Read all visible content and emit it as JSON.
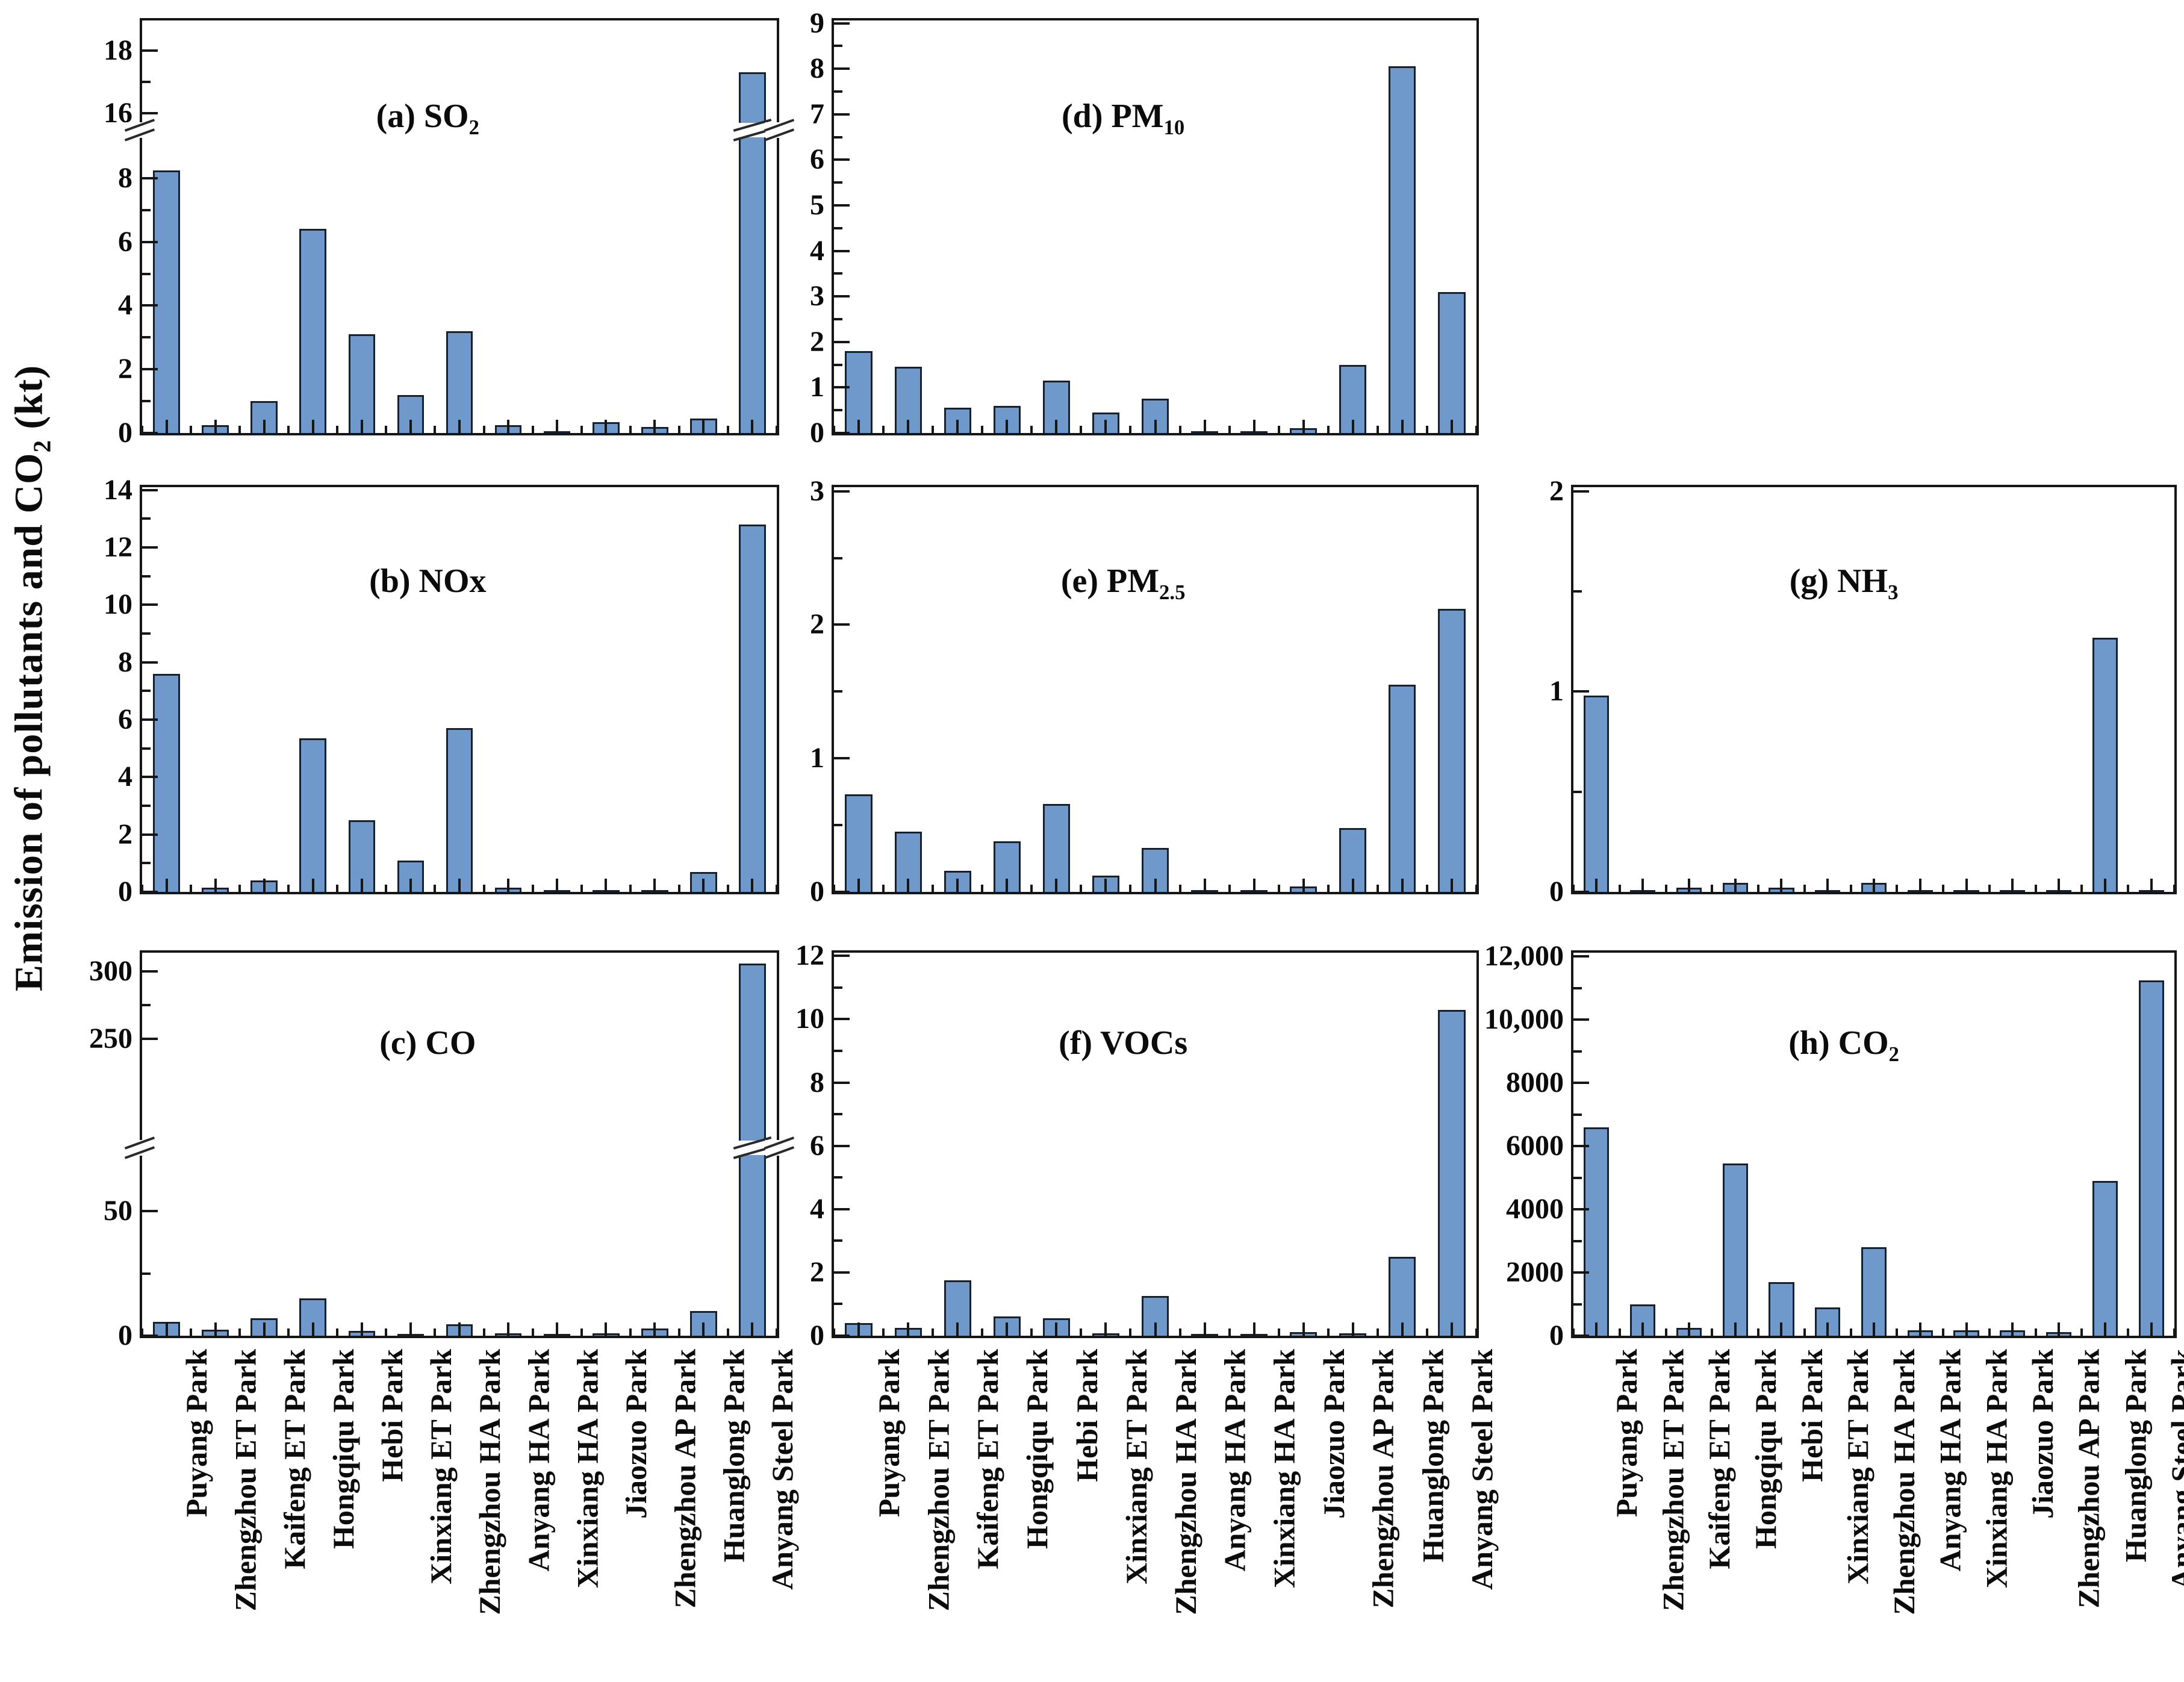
{
  "figure": {
    "y_axis_label": {
      "pre": "Emission of pollutants and CO",
      "sub": "2",
      "post": " (kt)"
    },
    "bar_color": "#6f98cb",
    "bar_edge_color": "#17202e",
    "axis_color": "#161616",
    "text_color": "#0b0b0b"
  },
  "chart_data": {
    "type": "bar",
    "legend": "none",
    "grid": "off",
    "categories": [
      "Puyang Park",
      "Zhengzhou ET Park",
      "Kaifeng ET Park",
      "Hongqiqu Park",
      "Hebi Park",
      "Xinxiang ET Park",
      "Zhengzhou HA Park",
      "Anyang HA Park",
      "Xinxiang HA Park",
      "Jiaozuo Park",
      "Zhengzhou AP Park",
      "Huanglong Park",
      "Anyang Steel Park"
    ],
    "panels": [
      {
        "key": "a",
        "title": "(a)  SO",
        "title_sub": "2",
        "grid": [
          0,
          0
        ],
        "values": [
          8.25,
          0.25,
          1.0,
          6.4,
          3.1,
          1.2,
          3.2,
          0.25,
          0.05,
          0.35,
          0.18,
          0.45,
          17.3
        ],
        "axis": {
          "segments": [
            {
              "v0": 0,
              "v1": 9.0,
              "f0": 0,
              "f1": 0.695
            },
            {
              "v0": 16,
              "v1": 18.95,
              "f0": 0.775,
              "f1": 1.0
            }
          ],
          "majors": [
            {
              "v": 0,
              "label": "0"
            },
            {
              "v": 2,
              "label": "2"
            },
            {
              "v": 4,
              "label": "4"
            },
            {
              "v": 6,
              "label": "6"
            },
            {
              "v": 8,
              "label": "8"
            },
            {
              "v": 16,
              "label": "16"
            },
            {
              "v": 18,
              "label": "18"
            }
          ],
          "minors": [
            1,
            3,
            5,
            7,
            17
          ],
          "break_frac": 0.735
        }
      },
      {
        "key": "d",
        "title": "(d) PM",
        "title_sub": "10",
        "grid": [
          0,
          1
        ],
        "values": [
          1.8,
          1.45,
          0.55,
          0.6,
          1.15,
          0.45,
          0.75,
          0.02,
          0.02,
          0.1,
          1.5,
          8.05,
          3.1
        ],
        "axis": {
          "segments": [
            {
              "v0": 0,
              "v1": 9.06,
              "f0": 0,
              "f1": 1.0
            }
          ],
          "majors": [
            {
              "v": 0,
              "label": "0"
            },
            {
              "v": 1,
              "label": "1"
            },
            {
              "v": 2,
              "label": "2"
            },
            {
              "v": 3,
              "label": "3"
            },
            {
              "v": 4,
              "label": "4"
            },
            {
              "v": 5,
              "label": "5"
            },
            {
              "v": 6,
              "label": "6"
            },
            {
              "v": 7,
              "label": "7"
            },
            {
              "v": 8,
              "label": "8"
            },
            {
              "v": 9,
              "label": "9"
            }
          ],
          "minors": [
            0.5,
            1.5,
            2.5,
            3.5,
            4.5,
            5.5,
            6.5,
            7.5,
            8.5
          ],
          "break_frac": null
        }
      },
      {
        "key": "b",
        "title": "(b) NOx",
        "title_sub": "",
        "grid": [
          1,
          0
        ],
        "values": [
          7.6,
          0.15,
          0.4,
          5.35,
          2.5,
          1.1,
          5.7,
          0.15,
          0.03,
          0.07,
          0.06,
          0.7,
          12.8
        ],
        "axis": {
          "segments": [
            {
              "v0": 0,
              "v1": 14.1,
              "f0": 0,
              "f1": 1.0
            }
          ],
          "majors": [
            {
              "v": 0,
              "label": "0"
            },
            {
              "v": 2,
              "label": "2"
            },
            {
              "v": 4,
              "label": "4"
            },
            {
              "v": 6,
              "label": "6"
            },
            {
              "v": 8,
              "label": "8"
            },
            {
              "v": 10,
              "label": "10"
            },
            {
              "v": 12,
              "label": "12"
            },
            {
              "v": 14,
              "label": "14"
            }
          ],
          "minors": [
            1,
            3,
            5,
            7,
            9,
            11,
            13
          ],
          "break_frac": null
        }
      },
      {
        "key": "e",
        "title": "(e) PM",
        "title_sub": "2.5",
        "grid": [
          1,
          1
        ],
        "values": [
          0.73,
          0.45,
          0.16,
          0.38,
          0.66,
          0.12,
          0.33,
          0.01,
          0.01,
          0.04,
          0.48,
          1.55,
          2.12
        ],
        "axis": {
          "segments": [
            {
              "v0": 0,
              "v1": 3.03,
              "f0": 0,
              "f1": 1.0
            }
          ],
          "majors": [
            {
              "v": 0,
              "label": "0"
            },
            {
              "v": 1,
              "label": "1"
            },
            {
              "v": 2,
              "label": "2"
            },
            {
              "v": 3,
              "label": "3"
            }
          ],
          "minors": [
            0.5,
            1.5,
            2.5
          ],
          "break_frac": null
        }
      },
      {
        "key": "g",
        "title": "(g) NH",
        "title_sub": "3",
        "grid": [
          1,
          2
        ],
        "values": [
          0.98,
          0.005,
          0.02,
          0.045,
          0.02,
          0.005,
          0.045,
          0.004,
          0.004,
          0.006,
          0.004,
          1.27,
          0.01
        ],
        "axis": {
          "segments": [
            {
              "v0": 0,
              "v1": 2.02,
              "f0": 0,
              "f1": 1.0
            }
          ],
          "majors": [
            {
              "v": 0,
              "label": "0"
            },
            {
              "v": 1,
              "label": "1"
            },
            {
              "v": 2,
              "label": "2"
            }
          ],
          "minors": [
            0.5,
            1.5
          ],
          "break_frac": null
        }
      },
      {
        "key": "c",
        "title": "(c) CO",
        "title_sub": "",
        "grid": [
          2,
          0
        ],
        "values": [
          5.5,
          2.5,
          7.0,
          15.0,
          2.0,
          0.5,
          4.5,
          1.0,
          0.2,
          1.0,
          3.0,
          10.0,
          306
        ],
        "axis": {
          "segments": [
            {
              "v0": 0,
              "v1": 70,
              "f0": 0,
              "f1": 0.455
            },
            {
              "v0": 245,
              "v1": 314,
              "f0": 0.758,
              "f1": 1.0
            }
          ],
          "majors": [
            {
              "v": 0,
              "label": "0"
            },
            {
              "v": 50,
              "label": "50"
            },
            {
              "v": 250,
              "label": "250"
            },
            {
              "v": 300,
              "label": "300"
            }
          ],
          "minors": [
            25,
            275
          ],
          "break_frac": 0.49
        }
      },
      {
        "key": "f",
        "title": "(f) VOCs",
        "title_sub": "",
        "grid": [
          2,
          1
        ],
        "values": [
          0.4,
          0.25,
          1.75,
          0.6,
          0.55,
          0.08,
          1.25,
          0.02,
          0.02,
          0.12,
          0.07,
          2.5,
          10.3
        ],
        "axis": {
          "segments": [
            {
              "v0": 0,
              "v1": 12.1,
              "f0": 0,
              "f1": 1.0
            }
          ],
          "majors": [
            {
              "v": 0,
              "label": "0"
            },
            {
              "v": 2,
              "label": "2"
            },
            {
              "v": 4,
              "label": "4"
            },
            {
              "v": 6,
              "label": "6"
            },
            {
              "v": 8,
              "label": "8"
            },
            {
              "v": 10,
              "label": "10"
            },
            {
              "v": 12,
              "label": "12"
            }
          ],
          "minors": [
            1,
            3,
            5,
            7,
            9,
            11
          ],
          "break_frac": null
        }
      },
      {
        "key": "h",
        "title": "(h)  CO",
        "title_sub": "2",
        "grid": [
          2,
          2
        ],
        "values": [
          6600,
          1000,
          250,
          5450,
          1700,
          900,
          2800,
          180,
          180,
          180,
          120,
          4900,
          11250
        ],
        "axis": {
          "segments": [
            {
              "v0": 0,
              "v1": 12120,
              "f0": 0,
              "f1": 1.0
            }
          ],
          "majors": [
            {
              "v": 0,
              "label": "0"
            },
            {
              "v": 2000,
              "label": "2000"
            },
            {
              "v": 4000,
              "label": "4000"
            },
            {
              "v": 6000,
              "label": "6000"
            },
            {
              "v": 8000,
              "label": "8000"
            },
            {
              "v": 10000,
              "label": "10,000"
            },
            {
              "v": 12000,
              "label": "12,000"
            }
          ],
          "minors": [
            1000,
            3000,
            5000,
            7000,
            9000,
            11000
          ],
          "break_frac": null
        }
      }
    ]
  }
}
